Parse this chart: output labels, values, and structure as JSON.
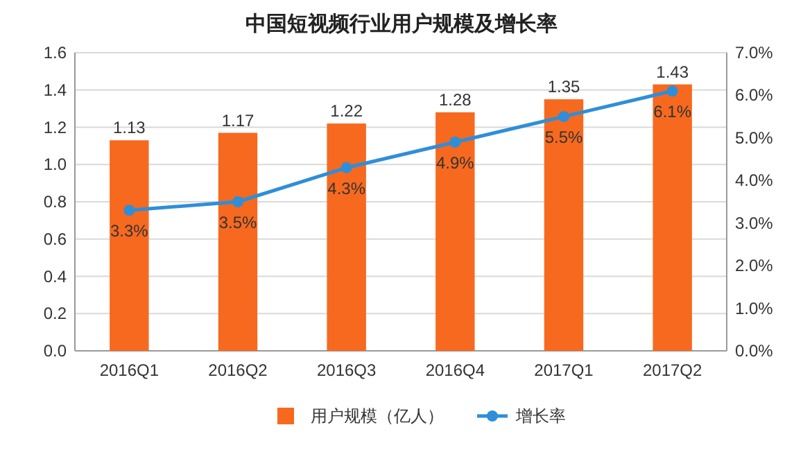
{
  "chart_data": {
    "type": "bar",
    "title": "中国短视频行业用户规模及增长率",
    "categories": [
      "2016Q1",
      "2016Q2",
      "2016Q3",
      "2016Q4",
      "2017Q1",
      "2017Q2"
    ],
    "series": [
      {
        "name": "用户规模（亿人）",
        "color": "#f7691f",
        "values": [
          1.13,
          1.17,
          1.22,
          1.28,
          1.35,
          1.43
        ],
        "value_labels": [
          "1.13",
          "1.17",
          "1.22",
          "1.28",
          "1.35",
          "1.43"
        ]
      },
      {
        "name": "增长率",
        "type": "line",
        "axis": "y2",
        "color": "#2f8ed8",
        "marker": "circle",
        "values": [
          3.3,
          3.5,
          4.3,
          4.9,
          5.5,
          6.1
        ],
        "value_labels": [
          "3.3%",
          "3.5%",
          "4.3%",
          "4.9%",
          "5.5%",
          "6.1%"
        ]
      }
    ],
    "ylim": [
      0,
      1.6
    ],
    "yticks": [
      {
        "value": 0,
        "label": "0.0"
      },
      {
        "value": 0.2,
        "label": "0.2"
      },
      {
        "value": 0.4,
        "label": "0.4"
      },
      {
        "value": 0.6,
        "label": "0.6"
      },
      {
        "value": 0.8,
        "label": "0.8"
      },
      {
        "value": 1.0,
        "label": "1.0"
      },
      {
        "value": 1.2,
        "label": "1.2"
      },
      {
        "value": 1.4,
        "label": "1.4"
      },
      {
        "value": 1.6,
        "label": "1.6"
      }
    ],
    "y2lim": [
      0,
      7
    ],
    "y2ticks": [
      {
        "value": 0,
        "label": "0.0%"
      },
      {
        "value": 1,
        "label": "1.0%"
      },
      {
        "value": 2,
        "label": "2.0%"
      },
      {
        "value": 3,
        "label": "3.0%"
      },
      {
        "value": 4,
        "label": "4.0%"
      },
      {
        "value": 5,
        "label": "5.0%"
      },
      {
        "value": 6,
        "label": "6.0%"
      },
      {
        "value": 7,
        "label": "7.0%"
      }
    ],
    "grid": "y",
    "legend": "bottom"
  }
}
